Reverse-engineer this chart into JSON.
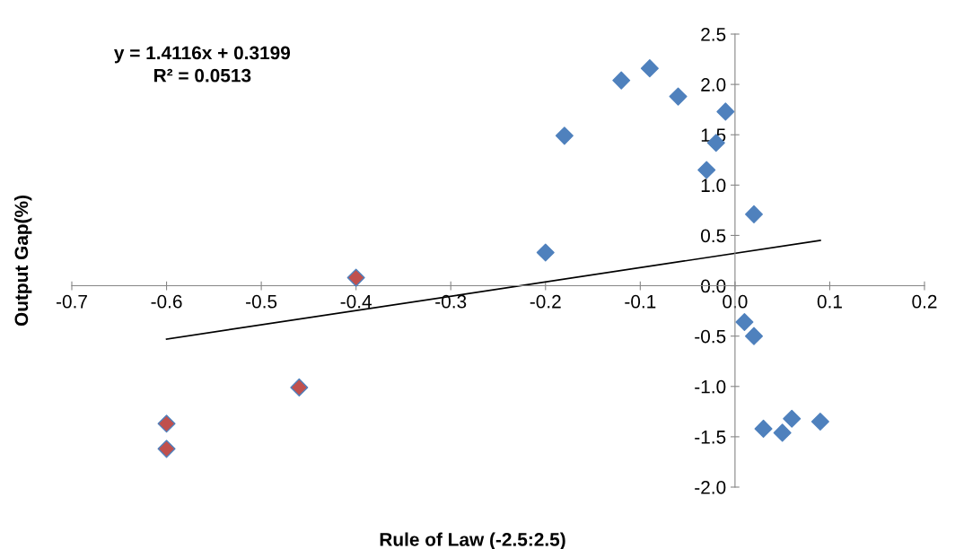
{
  "chart_data": {
    "type": "scatter",
    "xlabel": "Rule of Law (-2.5:2.5)",
    "ylabel": "Output Gap(%)",
    "annotations": [
      "y = 1.4116x + 0.3199",
      "R² = 0.0513"
    ],
    "series": [
      {
        "color": "#4f81bd",
        "marker": "diamond",
        "x": [
          -0.12,
          -0.09,
          -0.06,
          -0.02,
          -0.03,
          -0.01,
          -0.18,
          -0.2,
          0.02,
          0.01,
          0.02,
          0.03,
          0.05,
          0.06,
          0.09
        ],
        "values": [
          2.04,
          2.16,
          1.88,
          1.42,
          1.15,
          1.73,
          1.49,
          0.33,
          0.71,
          -0.36,
          -0.5,
          -1.42,
          -1.46,
          -1.32,
          -1.35
        ]
      },
      {
        "color": "#c0504d",
        "marker": "diamond",
        "x": [
          -0.6,
          -0.6,
          -0.46,
          -0.4
        ],
        "values": [
          -1.62,
          -1.37,
          -1.01,
          0.08
        ]
      },
      {
        "type": "line",
        "color": "#000000",
        "marker": "none",
        "x": [
          -0.6,
          0.09
        ],
        "values": [
          -0.53,
          0.45
        ]
      }
    ],
    "grid": false,
    "legend": false,
    "xlim": [
      -0.7,
      0.2
    ],
    "ylim": [
      -2.0,
      2.5
    ],
    "xticks": [
      -0.7,
      -0.6,
      -0.5,
      -0.4,
      -0.3,
      -0.2,
      -0.1,
      {
        "value": 0,
        "label": "0.0"
      },
      0.1,
      0.2
    ],
    "yticks": [
      {
        "value": -2,
        "label": "-2.0"
      },
      -1.5,
      {
        "value": -1,
        "label": "-1.0"
      },
      -0.5,
      {
        "value": 0,
        "label": "0.0"
      },
      0.5,
      {
        "value": 1,
        "label": "1.0"
      },
      1.5,
      {
        "value": 2,
        "label": "2.0"
      },
      2.5
    ]
  }
}
